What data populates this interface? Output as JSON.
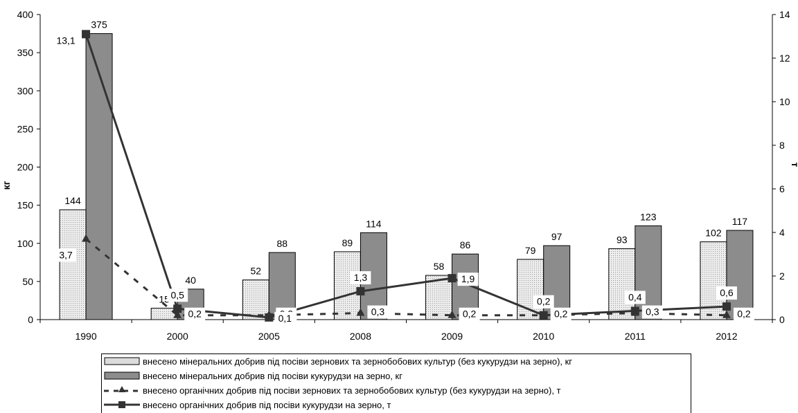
{
  "chart_data": {
    "type": "bar",
    "categories": [
      "1990",
      "2000",
      "2005",
      "2008",
      "2009",
      "2010",
      "2011",
      "2012"
    ],
    "y_left": {
      "label": "кг",
      "ylim": [
        0,
        400
      ],
      "ticks": [
        0,
        50,
        100,
        150,
        200,
        250,
        300,
        350,
        400
      ]
    },
    "y_right": {
      "label": "т",
      "ylim": [
        0,
        14
      ],
      "ticks": [
        0,
        2,
        4,
        6,
        8,
        10,
        12,
        14
      ]
    },
    "series": [
      {
        "name": "внесено мінеральних добрив під посіви зернових та зернобобових культур (без кукурудзи на зерно), кг",
        "kind": "bar",
        "axis": "left",
        "color": "#dcdcdc",
        "values": [
          144,
          15,
          52,
          89,
          58,
          79,
          93,
          102
        ],
        "labels": [
          "144",
          "15",
          "52",
          "89",
          "58",
          "79",
          "93",
          "102"
        ]
      },
      {
        "name": "внесено мінеральних добрив під посіви кукурудзи на зерно, кг",
        "kind": "bar",
        "axis": "left",
        "color": "#8c8c8c",
        "values": [
          375,
          40,
          88,
          114,
          86,
          97,
          123,
          117
        ],
        "labels": [
          "375",
          "40",
          "88",
          "114",
          "86",
          "97",
          "123",
          "117"
        ]
      },
      {
        "name": "внесено органічних добрив під посіви зернових та зернобобових культур (без кукурудзи на зерно), т",
        "kind": "line",
        "axis": "right",
        "style": "dashed",
        "marker": "triangle",
        "color": "#333333",
        "values": [
          3.7,
          0.2,
          0.2,
          0.3,
          0.2,
          0.2,
          0.3,
          0.2
        ],
        "labels": [
          "3,7",
          "0,2",
          "0,2",
          "0,3",
          "0,2",
          "0,2",
          "0,3",
          "0,2"
        ]
      },
      {
        "name": "внесено органічних добрив під посіви  кукурудзи на зерно, т",
        "kind": "line",
        "axis": "right",
        "style": "solid",
        "marker": "square",
        "color": "#333333",
        "values": [
          13.1,
          0.5,
          0.1,
          1.3,
          1.9,
          0.2,
          0.4,
          0.6
        ],
        "labels": [
          "13,1",
          "0,5",
          "0,1",
          "1,3",
          "1,9",
          "0,2",
          "0,4",
          "0,6"
        ]
      }
    ],
    "grid": false,
    "legend_position": "bottom"
  }
}
